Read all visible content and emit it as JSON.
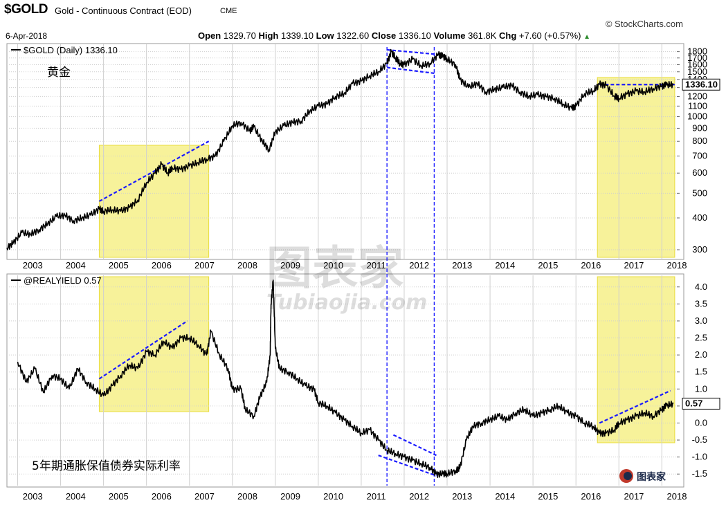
{
  "header": {
    "symbol": "$GOLD",
    "description": "Gold - Continuous Contract (EOD)",
    "exchange": "CME",
    "date": "6-Apr-2018",
    "brand": "© StockCharts.com",
    "open_label": "Open",
    "open": "1329.70",
    "high_label": "High",
    "high": "1339.10",
    "low_label": "Low",
    "low": "1322.60",
    "close_label": "Close",
    "close": "1336.10",
    "volume_label": "Volume",
    "volume": "361.8K",
    "chg_label": "Chg",
    "chg": "+7.60 (+0.57%)",
    "chg_arrow": "▲"
  },
  "watermark": {
    "cn": "图表家",
    "latin": "Tubiaojia.com",
    "logo_cn": "图表家"
  },
  "colors": {
    "line": "#000000",
    "highlight": "#f7f29a",
    "highlight_border": "#e8dc3c",
    "trend": "#1a1aff",
    "grid": "#cfcfcf"
  },
  "chart_data": [
    {
      "type": "line",
      "title": "$GOLD (Daily) 1336.10",
      "annotation": "黄金",
      "scale": "log",
      "ylim": [
        280,
        1900
      ],
      "y_ticks": [
        300,
        400,
        500,
        600,
        700,
        800,
        900,
        1000,
        1100,
        1200,
        1300,
        1400,
        1500,
        1600,
        1700,
        1800
      ],
      "last_value_label": "1336.10",
      "x_ticks": [
        "2003",
        "2004",
        "2005",
        "2006",
        "2007",
        "2008",
        "2009",
        "2010",
        "2011",
        "2012",
        "2013",
        "2014",
        "2015",
        "2016",
        "2017",
        "2018"
      ],
      "xlim": [
        2002.75,
        2018.35
      ],
      "grid": true,
      "series": [
        {
          "x": [
            2002.75,
            2002.9,
            2003.1,
            2003.3,
            2003.5,
            2003.7,
            2003.9,
            2004.1,
            2004.3,
            2004.5,
            2004.7,
            2004.9,
            2005.0,
            2005.2,
            2005.4,
            2005.6,
            2005.8,
            2006.0,
            2006.2,
            2006.35,
            2006.5,
            2006.6,
            2006.8,
            2007.0,
            2007.2,
            2007.4,
            2007.6,
            2007.8,
            2008.0,
            2008.2,
            2008.4,
            2008.5,
            2008.7,
            2008.85,
            2009.0,
            2009.2,
            2009.4,
            2009.6,
            2009.8,
            2010.0,
            2010.2,
            2010.4,
            2010.6,
            2010.8,
            2011.0,
            2011.2,
            2011.4,
            2011.6,
            2011.7,
            2011.8,
            2011.9,
            2012.0,
            2012.2,
            2012.4,
            2012.6,
            2012.8,
            2012.9,
            2013.0,
            2013.2,
            2013.3,
            2013.5,
            2013.7,
            2013.9,
            2014.1,
            2014.3,
            2014.5,
            2014.7,
            2014.9,
            2015.1,
            2015.3,
            2015.5,
            2015.7,
            2015.9,
            2016.0,
            2016.2,
            2016.4,
            2016.55,
            2016.7,
            2016.9,
            2017.0,
            2017.2,
            2017.4,
            2017.6,
            2017.8,
            2018.0,
            2018.1,
            2018.27
          ],
          "y": [
            305,
            320,
            350,
            345,
            360,
            380,
            405,
            410,
            390,
            400,
            410,
            435,
            425,
            430,
            425,
            440,
            470,
            550,
            600,
            650,
            600,
            630,
            620,
            640,
            660,
            680,
            700,
            800,
            920,
            950,
            880,
            910,
            800,
            740,
            870,
            920,
            950,
            960,
            1050,
            1100,
            1120,
            1200,
            1230,
            1350,
            1380,
            1450,
            1500,
            1620,
            1800,
            1700,
            1620,
            1600,
            1680,
            1580,
            1620,
            1760,
            1720,
            1680,
            1600,
            1400,
            1300,
            1350,
            1250,
            1280,
            1300,
            1330,
            1250,
            1200,
            1220,
            1200,
            1180,
            1120,
            1080,
            1100,
            1230,
            1260,
            1340,
            1330,
            1200,
            1180,
            1230,
            1260,
            1250,
            1290,
            1320,
            1330,
            1336
          ]
        }
      ]
    },
    {
      "type": "line",
      "title": "@REALYIELD 0.57",
      "annotation": "5年期通胀保值债券实际利率",
      "ylim": [
        -1.8,
        4.3
      ],
      "y_ticks": [
        -1.5,
        -1.0,
        -0.5,
        0.0,
        0.5,
        1.0,
        1.5,
        2.0,
        2.5,
        3.0,
        3.5,
        4.0
      ],
      "y_tick_labels": [
        "-1.5",
        "-1.0",
        "-0.5",
        "0.0",
        "0.5",
        "1.0",
        "1.5",
        "2.0",
        "2.5",
        "3.0",
        "3.5",
        "4.0"
      ],
      "last_value_label": "0.57",
      "x_ticks": [
        "2003",
        "2004",
        "2005",
        "2006",
        "2007",
        "2008",
        "2009",
        "2010",
        "2011",
        "2012",
        "2013",
        "2014",
        "2015",
        "2016",
        "2017",
        "2018"
      ],
      "xlim": [
        2002.75,
        2018.35
      ],
      "grid": true,
      "series": [
        {
          "x": [
            2003.0,
            2003.2,
            2003.4,
            2003.6,
            2003.8,
            2004.0,
            2004.2,
            2004.4,
            2004.6,
            2004.8,
            2005.0,
            2005.2,
            2005.4,
            2005.6,
            2005.8,
            2006.0,
            2006.2,
            2006.4,
            2006.6,
            2006.8,
            2007.0,
            2007.2,
            2007.4,
            2007.5,
            2007.7,
            2007.9,
            2008.0,
            2008.2,
            2008.3,
            2008.5,
            2008.65,
            2008.8,
            2008.88,
            2008.9,
            2008.95,
            2009.0,
            2009.1,
            2009.3,
            2009.5,
            2009.7,
            2009.9,
            2010.0,
            2010.2,
            2010.4,
            2010.6,
            2010.8,
            2011.0,
            2011.2,
            2011.4,
            2011.6,
            2011.8,
            2012.0,
            2012.2,
            2012.4,
            2012.6,
            2012.75,
            2012.9,
            2013.0,
            2013.2,
            2013.3,
            2013.45,
            2013.6,
            2013.8,
            2014.0,
            2014.2,
            2014.4,
            2014.6,
            2014.8,
            2015.0,
            2015.2,
            2015.4,
            2015.6,
            2015.8,
            2016.0,
            2016.2,
            2016.4,
            2016.55,
            2016.7,
            2016.9,
            2017.0,
            2017.2,
            2017.4,
            2017.6,
            2017.8,
            2018.0,
            2018.1,
            2018.27
          ],
          "y": [
            1.8,
            1.2,
            1.6,
            0.9,
            1.4,
            1.3,
            1.0,
            1.6,
            1.2,
            1.0,
            0.8,
            1.1,
            1.4,
            1.7,
            1.6,
            2.1,
            2.0,
            2.4,
            2.2,
            2.5,
            2.5,
            2.3,
            2.0,
            2.7,
            2.0,
            1.6,
            1.0,
            1.0,
            0.4,
            0.2,
            0.8,
            1.2,
            2.0,
            3.5,
            4.2,
            2.2,
            1.6,
            1.5,
            1.3,
            1.1,
            1.0,
            0.6,
            0.5,
            0.3,
            0.1,
            -0.1,
            -0.3,
            -0.2,
            -0.5,
            -0.8,
            -0.9,
            -1.0,
            -1.1,
            -1.2,
            -1.3,
            -1.5,
            -1.5,
            -1.5,
            -1.4,
            -1.3,
            -0.5,
            -0.1,
            0.0,
            0.1,
            0.2,
            0.1,
            0.3,
            0.4,
            0.2,
            0.3,
            0.4,
            0.5,
            0.3,
            0.2,
            0.0,
            -0.1,
            -0.3,
            -0.3,
            -0.2,
            0.0,
            0.1,
            0.2,
            0.3,
            0.2,
            0.4,
            0.5,
            0.57
          ]
        }
      ]
    }
  ]
}
